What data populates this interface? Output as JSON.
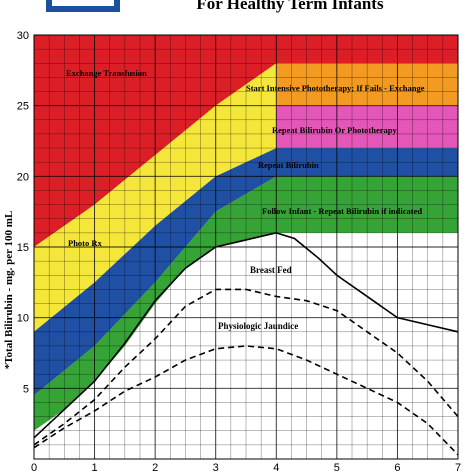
{
  "chart_data": {
    "type": "area",
    "title": "For Healthy Term Infants",
    "ylabel": "*Total Bilirubin - mg. per 100 mL",
    "xlabel": "",
    "xlim": [
      0,
      7
    ],
    "ylim": [
      0,
      30
    ],
    "x_ticks": [
      "0",
      "1",
      "2",
      "3",
      "4",
      "5",
      "6",
      "7"
    ],
    "y_ticks": [
      "5",
      "10",
      "15",
      "20",
      "25",
      "30"
    ],
    "grid": true,
    "colors": {
      "exchange": "#dc1f26",
      "intensive": "#f39a22",
      "repeat_photo": "#e456b7",
      "repeat": "#2050a4",
      "follow": "#35a336",
      "photo_rx": "#f5e73a",
      "grid": "#000000",
      "background": "#ffffff"
    },
    "zones": [
      {
        "name": "Exchange Transfusion",
        "color_key": "exchange",
        "upper": [
          [
            0,
            30
          ],
          [
            7,
            30
          ]
        ],
        "lower": [
          [
            0,
            15
          ],
          [
            1,
            18
          ],
          [
            2,
            21.5
          ],
          [
            3,
            25
          ],
          [
            4,
            28
          ],
          [
            7,
            28
          ]
        ]
      },
      {
        "name": "Start Intensive Phototherapy; If Fails - Exchange",
        "color_key": "intensive",
        "upper": [
          [
            0,
            15
          ],
          [
            1,
            18
          ],
          [
            2,
            21.5
          ],
          [
            3,
            25
          ],
          [
            4,
            28
          ],
          [
            7,
            28
          ]
        ],
        "lower": [
          [
            0,
            13
          ],
          [
            1,
            16
          ],
          [
            2,
            19
          ],
          [
            3,
            22
          ],
          [
            3.8,
            24.5
          ],
          [
            4,
            25
          ],
          [
            7,
            25
          ]
        ]
      },
      {
        "name": "Repeat Bilirubin Or Phototherapy",
        "color_key": "repeat_photo",
        "upper": [
          [
            0,
            13
          ],
          [
            1,
            16
          ],
          [
            2,
            19
          ],
          [
            3,
            22
          ],
          [
            3.8,
            24.5
          ],
          [
            4,
            25
          ],
          [
            7,
            25
          ]
        ],
        "lower": [
          [
            0,
            13
          ],
          [
            1,
            16
          ],
          [
            2,
            19
          ],
          [
            3,
            22
          ],
          [
            4,
            22
          ],
          [
            7,
            22
          ]
        ]
      },
      {
        "name": "Photo Rx",
        "color_key": "photo_rx",
        "upper": [
          [
            0,
            15
          ],
          [
            1,
            18
          ],
          [
            2,
            21.5
          ],
          [
            3,
            25
          ],
          [
            4,
            28
          ]
        ],
        "lower": [
          [
            0,
            9
          ],
          [
            0.5,
            10.5
          ],
          [
            1,
            12.5
          ],
          [
            1.5,
            14.5
          ],
          [
            2,
            16.5
          ],
          [
            2.5,
            18
          ],
          [
            3,
            20
          ],
          [
            4,
            20
          ]
        ]
      },
      {
        "name": "Repeat Bilirubin",
        "color_key": "repeat",
        "upper": [
          [
            0,
            9
          ],
          [
            1,
            12.5
          ],
          [
            2,
            16.5
          ],
          [
            3,
            20
          ],
          [
            4,
            22
          ],
          [
            7,
            22
          ]
        ],
        "lower": [
          [
            0,
            4.5
          ],
          [
            1,
            8
          ],
          [
            2,
            12.5
          ],
          [
            3,
            17.5
          ],
          [
            4,
            20
          ],
          [
            7,
            20
          ]
        ]
      },
      {
        "name": "Follow Infant - Repeat Bilirubin if indicated",
        "color_key": "follow",
        "upper": [
          [
            0,
            4.5
          ],
          [
            1,
            8
          ],
          [
            2,
            12.5
          ],
          [
            3,
            17.5
          ],
          [
            4,
            20
          ],
          [
            7,
            20
          ]
        ],
        "lower": [
          [
            0,
            2
          ],
          [
            0.5,
            3.5
          ],
          [
            1,
            5.5
          ],
          [
            1.5,
            8
          ],
          [
            2,
            11
          ],
          [
            2.5,
            13.5
          ],
          [
            3,
            15
          ],
          [
            4,
            16
          ],
          [
            7,
            16
          ]
        ]
      }
    ],
    "zone_labels": {
      "exchange": "Exchange Transfusion",
      "intensive": "Start Intensive Phototherapy; If Fails - Exchange",
      "repeat_photo": "Repeat Bilirubin Or Phototherapy",
      "repeat": "Repeat Bilirubin",
      "follow": "Follow Infant - Repeat Bilirubin if indicated",
      "photo_rx": "Photo Rx"
    },
    "series": [
      {
        "name": "Breast Fed",
        "style": "solid",
        "x": [
          0,
          0.5,
          1,
          1.5,
          2,
          2.5,
          3,
          3.5,
          4,
          4.3,
          4.7,
          5,
          5.5,
          6,
          6.5,
          7
        ],
        "y": [
          1.5,
          3.5,
          5.5,
          8.2,
          11.2,
          13.5,
          15,
          15.5,
          16,
          15.6,
          14.2,
          13,
          11.5,
          10,
          9.5,
          9
        ]
      },
      {
        "name": "Physiologic Jaundice",
        "style": "dashed",
        "x": [
          0,
          0.5,
          1,
          1.5,
          2,
          2.5,
          3,
          3.5,
          4,
          4.5,
          5,
          5.5,
          6,
          6.5,
          7
        ],
        "y": [
          1,
          2.5,
          4.2,
          6.5,
          8.5,
          10.8,
          12,
          12,
          11.5,
          11.2,
          10.5,
          9,
          7.5,
          5.5,
          3
        ]
      },
      {
        "name": "",
        "style": "dashed",
        "x": [
          0,
          0.5,
          1,
          1.5,
          2,
          2.5,
          3,
          3.5,
          4,
          4.5,
          5,
          5.5,
          6,
          6.5,
          7
        ],
        "y": [
          0.8,
          2.2,
          3.4,
          4.8,
          5.8,
          7,
          7.8,
          8,
          7.8,
          7,
          6,
          5,
          4,
          2.5,
          0.3
        ]
      }
    ]
  }
}
